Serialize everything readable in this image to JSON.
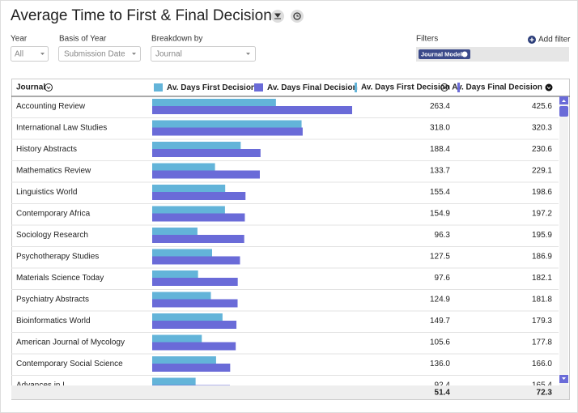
{
  "header": {
    "title": "Average Time to First & Final Decision"
  },
  "controls": {
    "year": {
      "label": "Year",
      "value": "All"
    },
    "basis": {
      "label": "Basis of Year",
      "value": "Submission Date"
    },
    "breakdown": {
      "label": "Breakdown by",
      "value": "Journal"
    },
    "filters": {
      "label": "Filters",
      "add": "Add filter",
      "tags": [
        "Journal Model"
      ]
    }
  },
  "table": {
    "columns": [
      "Journal",
      "Av. Days First Decision",
      "Av. Days Final Decision"
    ],
    "legend": [
      {
        "name": "Av. Days First Decision",
        "color": "#63b4d9"
      },
      {
        "name": "Av. Days Final Decision",
        "color": "#6a6bd8"
      }
    ],
    "rows": [
      {
        "journal": "Accounting Review",
        "first": 263.4,
        "final": 425.6
      },
      {
        "journal": "International Law Studies",
        "first": 318.0,
        "first_label": "318.0",
        "final": 320.3
      },
      {
        "journal": "History Abstracts",
        "first": 188.4,
        "final": 230.6
      },
      {
        "journal": "Mathematics Review",
        "first": 133.7,
        "final": 229.1
      },
      {
        "journal": "Linguistics World",
        "first": 155.4,
        "final": 198.6
      },
      {
        "journal": "Contemporary Africa",
        "first": 154.9,
        "final": 197.2
      },
      {
        "journal": "Sociology Research",
        "first": 96.3,
        "final": 195.9
      },
      {
        "journal": "Psychotherapy Studies",
        "first": 127.5,
        "final": 186.9
      },
      {
        "journal": "Materials Science Today",
        "first": 97.6,
        "final": 182.1
      },
      {
        "journal": "Psychiatry Abstracts",
        "first": 124.9,
        "final": 181.8
      },
      {
        "journal": "Bioinformatics World",
        "first": 149.7,
        "final": 179.3
      },
      {
        "journal": "American Journal of Mycology",
        "first": 105.6,
        "final": 177.8
      },
      {
        "journal": "Contemporary Social Science",
        "first": 136.0,
        "first_label": "136.0",
        "final": 166.0,
        "final_label": "166.0"
      },
      {
        "journal": "Advances in L",
        "first": 92.4,
        "final": 165.4
      }
    ],
    "totals": {
      "first": 51.4,
      "final": 72.3
    }
  }
}
